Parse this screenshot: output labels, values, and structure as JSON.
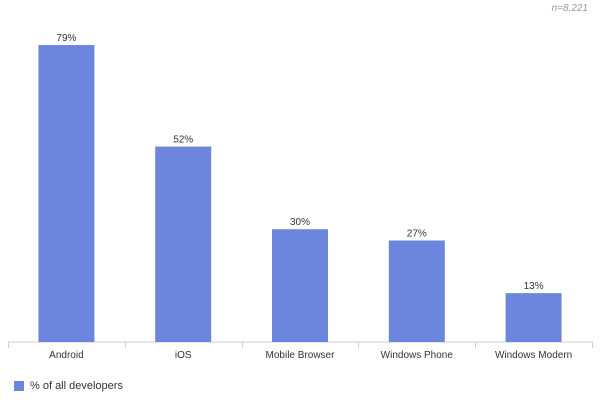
{
  "chart_data": {
    "type": "bar",
    "note": "n=8,221",
    "categories": [
      "Android",
      "iOS",
      "Mobile Browser",
      "Windows Phone",
      "Windows Modern"
    ],
    "series": [
      {
        "name": "% of all developers",
        "values": [
          79,
          52,
          30,
          27,
          13
        ],
        "data_labels": [
          "79%",
          "52%",
          "30%",
          "27%",
          "13%"
        ],
        "color": "#6b86dc"
      }
    ],
    "ylim": [
      0,
      83
    ],
    "grid": false,
    "legend_position": "bottom-left"
  }
}
